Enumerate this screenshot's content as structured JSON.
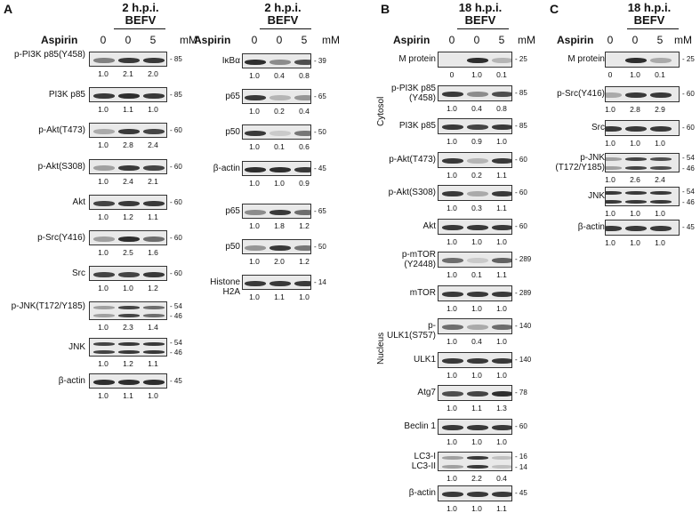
{
  "panels": {
    "A": {
      "letter": "A"
    },
    "B": {
      "letter": "B"
    },
    "C": {
      "letter": "C"
    }
  },
  "common": {
    "aspirin_label": "Aspirin",
    "unit": "mM",
    "dose_0": "0",
    "dose_5": "5"
  },
  "headers": {
    "a1": "2 h.p.i.",
    "a1_sub": "BEFV",
    "a2": "2 h.p.i.",
    "a2_sub": "BEFV",
    "b": "18 h.p.i.",
    "b_sub": "BEFV",
    "c": "18 h.p.i.",
    "c_sub": "BEFV"
  },
  "compartments": {
    "cytosol": "Cytosol",
    "nucleus": "Nucleus"
  },
  "blots": {
    "a1": [
      {
        "label": "p-PI3K p85(Y458)",
        "mw": [
          "85"
        ],
        "quant": [
          "1.0",
          "2.1",
          "2.0"
        ],
        "intensity": [
          0.5,
          0.85,
          0.85
        ]
      },
      {
        "label": "PI3K p85",
        "mw": [
          "85"
        ],
        "quant": [
          "1.0",
          "1.1",
          "1.0"
        ],
        "intensity": [
          0.85,
          0.9,
          0.85
        ]
      },
      {
        "label": "p-Akt(T473)",
        "mw": [
          "60"
        ],
        "quant": [
          "1.0",
          "2.8",
          "2.4"
        ],
        "intensity": [
          0.3,
          0.85,
          0.8
        ]
      },
      {
        "label": "p-Akt(S308)",
        "mw": [
          "60"
        ],
        "quant": [
          "1.0",
          "2.4",
          "2.1"
        ],
        "intensity": [
          0.35,
          0.85,
          0.8
        ]
      },
      {
        "label": "Akt",
        "mw": [
          "60"
        ],
        "quant": [
          "1.0",
          "1.2",
          "1.1"
        ],
        "intensity": [
          0.8,
          0.85,
          0.85
        ]
      },
      {
        "label": "p-Src(Y416)",
        "mw": [
          "60"
        ],
        "quant": [
          "1.0",
          "2.5",
          "1.6"
        ],
        "intensity": [
          0.35,
          0.9,
          0.6
        ]
      },
      {
        "label": "Src",
        "mw": [
          "60"
        ],
        "quant": [
          "1.0",
          "1.0",
          "1.2"
        ],
        "intensity": [
          0.8,
          0.8,
          0.85
        ]
      },
      {
        "label": "p-JNK(T172/Y185)",
        "mw": [
          "54",
          "46"
        ],
        "quant": [
          "1.0",
          "2.3",
          "1.4"
        ],
        "intensity": [
          0.35,
          0.8,
          0.6
        ],
        "double": true
      },
      {
        "label": "JNK",
        "mw": [
          "54",
          "46"
        ],
        "quant": [
          "1.0",
          "1.2",
          "1.1"
        ],
        "intensity": [
          0.8,
          0.85,
          0.85
        ],
        "double": true
      },
      {
        "label": "β-actin",
        "mw": [
          "45"
        ],
        "quant": [
          "1.0",
          "1.1",
          "1.0"
        ],
        "intensity": [
          0.9,
          0.9,
          0.9
        ]
      }
    ],
    "a2": [
      {
        "label": "IκBα",
        "mw": [
          "39"
        ],
        "quant": [
          "1.0",
          "0.4",
          "0.8"
        ],
        "intensity": [
          0.9,
          0.45,
          0.75
        ]
      },
      {
        "label": "p65",
        "mw": [
          "65"
        ],
        "quant": [
          "1.0",
          "0.2",
          "0.4"
        ],
        "intensity": [
          0.85,
          0.25,
          0.4
        ]
      },
      {
        "label": "p50",
        "mw": [
          "50"
        ],
        "quant": [
          "1.0",
          "0.1",
          "0.6"
        ],
        "intensity": [
          0.85,
          0.15,
          0.55
        ]
      },
      {
        "label": "β-actin",
        "mw": [
          "45"
        ],
        "quant": [
          "1.0",
          "1.0",
          "0.9"
        ],
        "intensity": [
          0.9,
          0.9,
          0.85
        ]
      },
      {
        "label": "p65",
        "mw": [
          "65"
        ],
        "quant": [
          "1.0",
          "1.8",
          "1.2"
        ],
        "intensity": [
          0.45,
          0.85,
          0.6
        ]
      },
      {
        "label": "p50",
        "mw": [
          "50"
        ],
        "quant": [
          "1.0",
          "2.0",
          "1.2"
        ],
        "intensity": [
          0.4,
          0.85,
          0.55
        ]
      },
      {
        "label": "Histone H2A",
        "mw": [
          "14"
        ],
        "quant": [
          "1.0",
          "1.1",
          "1.0"
        ],
        "intensity": [
          0.85,
          0.85,
          0.85
        ]
      }
    ],
    "b": [
      {
        "label": "M protein",
        "mw": [
          "25"
        ],
        "quant": [
          "0",
          "1.0",
          "0.1"
        ],
        "intensity": [
          0.0,
          0.9,
          0.25
        ]
      },
      {
        "label": "p-PI3K p85 (Y458)",
        "mw": [
          "85"
        ],
        "quant": [
          "1.0",
          "0.4",
          "0.8"
        ],
        "intensity": [
          0.85,
          0.45,
          0.75
        ]
      },
      {
        "label": "PI3K p85",
        "mw": [
          "85"
        ],
        "quant": [
          "1.0",
          "0.9",
          "1.0"
        ],
        "intensity": [
          0.85,
          0.8,
          0.85
        ]
      },
      {
        "label": "p-Akt(T473)",
        "mw": [
          "60"
        ],
        "quant": [
          "1.0",
          "0.2",
          "1.1"
        ],
        "intensity": [
          0.85,
          0.25,
          0.85
        ]
      },
      {
        "label": "p-Akt(S308)",
        "mw": [
          "60"
        ],
        "quant": [
          "1.0",
          "0.3",
          "1.1"
        ],
        "intensity": [
          0.85,
          0.3,
          0.85
        ]
      },
      {
        "label": "Akt",
        "mw": [
          "60"
        ],
        "quant": [
          "1.0",
          "1.0",
          "1.0"
        ],
        "intensity": [
          0.85,
          0.85,
          0.85
        ]
      },
      {
        "label": "p-mTOR (Y2448)",
        "mw": [
          "289"
        ],
        "quant": [
          "1.0",
          "0.1",
          "1.1"
        ],
        "intensity": [
          0.6,
          0.15,
          0.65
        ]
      },
      {
        "label": "mTOR",
        "mw": [
          "289"
        ],
        "quant": [
          "1.0",
          "1.0",
          "1.0"
        ],
        "intensity": [
          0.85,
          0.85,
          0.85
        ]
      },
      {
        "label": "p-ULK1(S757)",
        "mw": [
          "140"
        ],
        "quant": [
          "1.0",
          "0.4",
          "1.0"
        ],
        "intensity": [
          0.6,
          0.3,
          0.6
        ]
      },
      {
        "label": "ULK1",
        "mw": [
          "140"
        ],
        "quant": [
          "1.0",
          "1.0",
          "1.0"
        ],
        "intensity": [
          0.85,
          0.85,
          0.85
        ]
      },
      {
        "label": "Atg7",
        "mw": [
          "78"
        ],
        "quant": [
          "1.0",
          "1.1",
          "1.3"
        ],
        "intensity": [
          0.75,
          0.8,
          0.9
        ]
      },
      {
        "label": "Beclin 1",
        "mw": [
          "60"
        ],
        "quant": [
          "1.0",
          "1.0",
          "1.0"
        ],
        "intensity": [
          0.85,
          0.85,
          0.85
        ]
      },
      {
        "label": "LC3-I\nLC3-II",
        "mw": [
          "16",
          "14"
        ],
        "quant": [
          "1.0",
          "2.2",
          "0.4"
        ],
        "intensity": [
          0.35,
          0.85,
          0.2
        ],
        "double": true
      },
      {
        "label": "β-actin",
        "mw": [
          "45"
        ],
        "quant": [
          "1.0",
          "1.0",
          "1.1"
        ],
        "intensity": [
          0.85,
          0.85,
          0.85
        ]
      }
    ],
    "c": [
      {
        "label": "M protein",
        "mw": [
          "25"
        ],
        "quant": [
          "0",
          "1.0",
          "0.1"
        ],
        "intensity": [
          0.0,
          0.9,
          0.3
        ]
      },
      {
        "label": "p-Src(Y416)",
        "mw": [
          "60"
        ],
        "quant": [
          "1.0",
          "2.8",
          "2.9"
        ],
        "intensity": [
          0.3,
          0.85,
          0.85
        ]
      },
      {
        "label": "Src",
        "mw": [
          "60"
        ],
        "quant": [
          "1.0",
          "1.0",
          "1.0"
        ],
        "intensity": [
          0.85,
          0.85,
          0.85
        ]
      },
      {
        "label": "p-JNK (T172/Y185)",
        "mw": [
          "54",
          "46"
        ],
        "quant": [
          "1.0",
          "2.6",
          "2.4"
        ],
        "intensity": [
          0.35,
          0.8,
          0.75
        ],
        "double": true
      },
      {
        "label": "JNK",
        "mw": [
          "54",
          "46"
        ],
        "quant": [
          "1.0",
          "1.0",
          "1.0"
        ],
        "intensity": [
          0.85,
          0.85,
          0.85
        ],
        "double": true
      },
      {
        "label": "β-actin",
        "mw": [
          "45"
        ],
        "quant": [
          "1.0",
          "1.0",
          "1.0"
        ],
        "intensity": [
          0.85,
          0.85,
          0.85
        ]
      }
    ]
  }
}
